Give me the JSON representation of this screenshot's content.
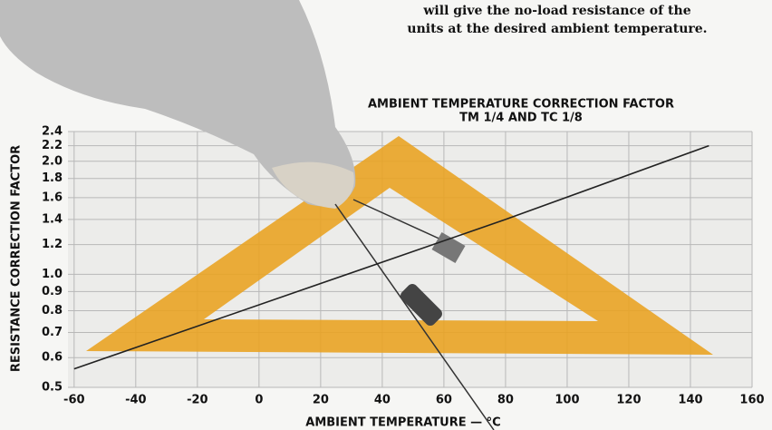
{
  "chart_data": {
    "type": "line",
    "annotations": [
      "will give the no-load resistance of the",
      "units at the desired ambient temperature."
    ],
    "title": "AMBIENT TEMPERATURE CORRECTION FACTOR",
    "subtitle": "TM 1/4 AND TC 1/8",
    "x_label": "AMBIENT TEMPERATURE — °C",
    "y_label": "RESISTANCE CORRECTION FACTOR",
    "x": [
      -60,
      80,
      146
    ],
    "values": [
      0.56,
      1.4,
      2.2
    ],
    "color": "#222222",
    "xlim": [
      -62,
      160
    ],
    "xticks": [
      -60,
      -40,
      -20,
      0,
      20,
      40,
      60,
      80,
      100,
      120,
      140,
      160
    ],
    "ylim": [
      0.5,
      2.4
    ],
    "ylog": true,
    "yticks": [
      {
        "value": 0.5,
        "label": "0.5"
      },
      0.6,
      0.7,
      0.8,
      0.9,
      {
        "value": 1,
        "label": "1.0"
      },
      1.2,
      1.4,
      1.6,
      1.8,
      {
        "value": 2,
        "label": "2.0"
      },
      2.2,
      2.4
    ],
    "grid": true
  }
}
